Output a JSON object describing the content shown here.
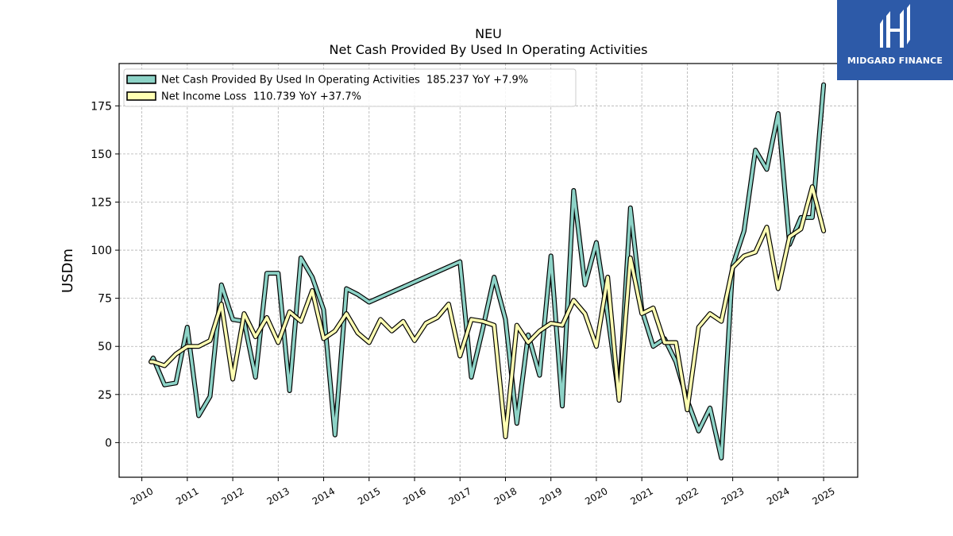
{
  "brand": {
    "name": "MIDGARD FINANCE",
    "color": "#2d5aa8"
  },
  "chart_data": {
    "type": "line",
    "title": "NEU",
    "subtitle": "Net Cash Provided By Used In Operating Activities",
    "xlabel": "",
    "ylabel": "USDm",
    "xlim": [
      2009.5,
      2025.75
    ],
    "ylim": [
      -18,
      197
    ],
    "x_ticks": [
      "2010",
      "2011",
      "2012",
      "2013",
      "2014",
      "2015",
      "2016",
      "2017",
      "2018",
      "2019",
      "2020",
      "2021",
      "2022",
      "2023",
      "2024",
      "2025"
    ],
    "y_ticks": [
      0,
      25,
      50,
      75,
      100,
      125,
      150,
      175
    ],
    "grid": true,
    "legend_position": "top-left",
    "series": [
      {
        "name": "Net Cash Provided By Used In Operating Activities  185.237 YoY +7.9%",
        "color": "#8dd3c7",
        "x": [
          2010.2,
          2010.25,
          2010.5,
          2010.75,
          2011.0,
          2011.25,
          2011.5,
          2011.75,
          2012.0,
          2012.25,
          2012.5,
          2012.75,
          2013.0,
          2013.25,
          2013.5,
          2013.75,
          2014.0,
          2014.25,
          2014.5,
          2014.75,
          2015.0,
          2017.0,
          2017.25,
          2017.5,
          2017.75,
          2018.0,
          2018.25,
          2018.5,
          2018.75,
          2019.0,
          2019.25,
          2019.5,
          2019.75,
          2020.0,
          2020.25,
          2020.5,
          2020.75,
          2021.0,
          2021.25,
          2021.5,
          2021.75,
          2022.0,
          2022.25,
          2022.5,
          2022.75,
          2023.0,
          2023.25,
          2023.5,
          2023.75,
          2024.0,
          2024.25,
          2024.5,
          2024.75,
          2025.0
        ],
        "values": [
          42,
          44,
          30,
          31,
          60,
          14,
          24,
          82,
          64,
          63,
          34,
          88,
          88,
          27,
          96,
          86,
          69,
          4,
          80,
          77,
          73,
          94,
          34,
          59,
          86,
          64,
          10,
          56,
          35,
          97,
          19,
          131,
          82,
          104,
          66,
          23,
          122,
          69,
          50,
          54,
          42,
          22,
          6,
          18,
          -8,
          92,
          110,
          152,
          142,
          171,
          103,
          117,
          117,
          186
        ]
      },
      {
        "name": "Net Income Loss  110.739 YoY +37.7%",
        "color": "#ffffb3",
        "x": [
          2010.2,
          2010.25,
          2010.5,
          2010.75,
          2011.0,
          2011.25,
          2011.5,
          2011.75,
          2012.0,
          2012.25,
          2012.5,
          2012.75,
          2013.0,
          2013.25,
          2013.5,
          2013.75,
          2014.0,
          2014.25,
          2014.5,
          2014.75,
          2015.0,
          2015.25,
          2015.5,
          2015.75,
          2016.0,
          2016.25,
          2016.5,
          2016.75,
          2017.0,
          2017.25,
          2017.5,
          2017.75,
          2018.0,
          2018.25,
          2018.5,
          2018.75,
          2019.0,
          2019.25,
          2019.5,
          2019.75,
          2020.0,
          2020.25,
          2020.5,
          2020.75,
          2021.0,
          2021.25,
          2021.5,
          2021.75,
          2022.0,
          2022.25,
          2022.5,
          2022.75,
          2023.0,
          2023.25,
          2023.5,
          2023.75,
          2024.0,
          2024.25,
          2024.5,
          2024.75,
          2025.0
        ],
        "values": [
          42,
          42,
          40,
          46,
          50,
          50,
          53,
          72,
          33,
          67,
          55,
          65,
          52,
          68,
          63,
          79,
          54,
          58,
          67,
          57,
          52,
          64,
          58,
          63,
          53,
          62,
          65,
          72,
          45,
          64,
          63,
          61,
          3,
          61,
          52,
          58,
          62,
          61,
          74,
          67,
          50,
          86,
          22,
          96,
          67,
          70,
          52,
          52,
          17,
          60,
          67,
          63,
          91,
          97,
          99,
          112,
          80,
          107,
          111,
          133,
          110
        ]
      }
    ]
  }
}
